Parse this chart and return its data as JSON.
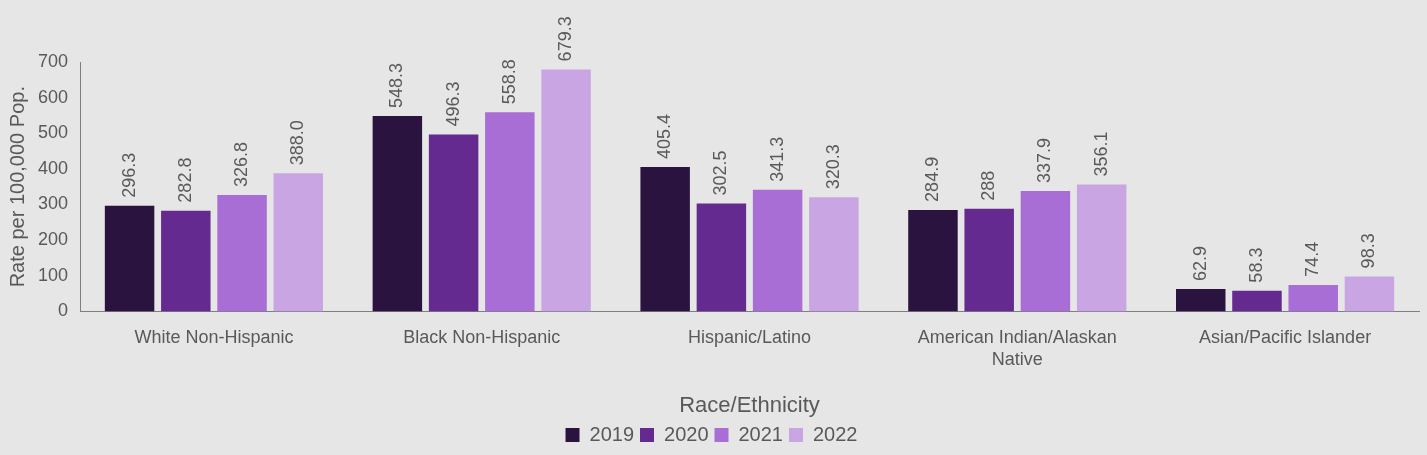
{
  "chart_data": {
    "type": "bar",
    "xlabel": "Race/Ethnicity",
    "ylabel": "Rate per 100,000 Pop.",
    "categories": [
      "White Non-Hispanic",
      "Black Non-Hispanic",
      "Hispanic/Latino",
      "American Indian/Alaskan Native",
      "Asian/Pacific Islander"
    ],
    "series": [
      {
        "name": "2019",
        "color": "#2b1340",
        "values": [
          296.3,
          548.3,
          405.4,
          284.9,
          62.9
        ],
        "value_labels": [
          "296.3",
          "548.3",
          "405.4",
          "284.9",
          "62.9"
        ]
      },
      {
        "name": "2020",
        "color": "#652a90",
        "values": [
          282.8,
          496.3,
          302.5,
          288,
          58.3
        ],
        "value_labels": [
          "282.8",
          "496.3",
          "302.5",
          "288",
          "58.3"
        ]
      },
      {
        "name": "2021",
        "color": "#a96dd6",
        "values": [
          326.8,
          558.8,
          341.3,
          337.9,
          74.4
        ],
        "value_labels": [
          "326.8",
          "558.8",
          "341.3",
          "337.9",
          "74.4"
        ]
      },
      {
        "name": "2022",
        "color": "#c9a6e3",
        "values": [
          388.0,
          679.3,
          320.3,
          356.1,
          98.3
        ],
        "value_labels": [
          "388.0",
          "679.3",
          "320.3",
          "356.1",
          "98.3"
        ]
      }
    ],
    "ylim": [
      0,
      700
    ],
    "yticks": [
      0,
      100,
      200,
      300,
      400,
      500,
      600,
      700
    ],
    "grid": false,
    "legend": "bottom"
  }
}
